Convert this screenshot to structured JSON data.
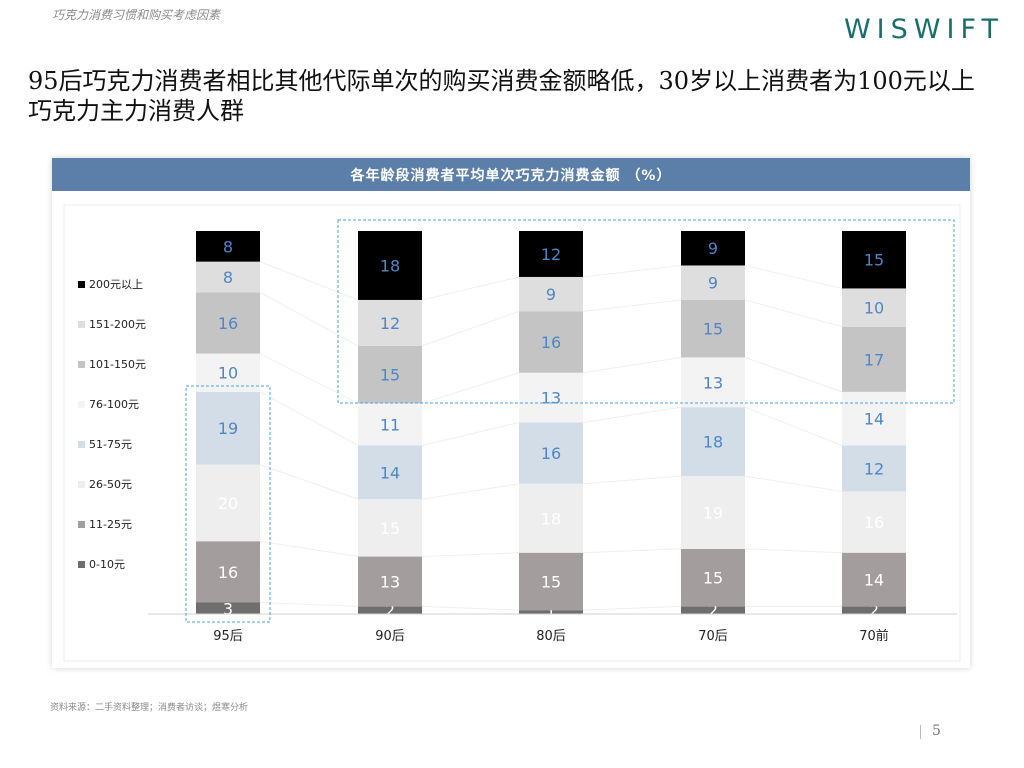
{
  "header": {
    "note": "巧克力消费习惯和购买考虑因素",
    "logo": "WISWIFT"
  },
  "headline": "95后巧克力消费者相比其他代际单次的购买消费金额略低，30岁以上消费者为100元以上巧克力主力消费人群",
  "footer": {
    "source": "资料来源：二手资料整理；消费者访谈；煜寒分析",
    "page_number": "5"
  },
  "chart_data": {
    "type": "bar",
    "stacked": true,
    "title": "各年龄段消费者平均单次巧克力消费金额  （%）",
    "categories": [
      "95后",
      "90后",
      "80后",
      "70后",
      "70前"
    ],
    "legend_position": "left",
    "series": [
      {
        "name": "0-10元",
        "values": [
          3,
          2,
          1,
          2,
          2
        ],
        "color": "#6e6e6e",
        "label_color": "#ffffff"
      },
      {
        "name": "11-25元",
        "values": [
          16,
          13,
          15,
          15,
          14
        ],
        "color": "#a39d9d",
        "label_color": "#ffffff"
      },
      {
        "name": "26-50元",
        "values": [
          20,
          15,
          18,
          19,
          16
        ],
        "color": "#eeeeee",
        "label_color": "#ffffff"
      },
      {
        "name": "51-75元",
        "values": [
          19,
          14,
          16,
          18,
          12
        ],
        "color": "#d3dde8",
        "label_color": "#4f86c6"
      },
      {
        "name": "76-100元",
        "values": [
          10,
          11,
          13,
          13,
          14
        ],
        "color": "#f3f3f3",
        "label_color": "#4f86c6"
      },
      {
        "name": "101-150元",
        "values": [
          16,
          15,
          16,
          15,
          17
        ],
        "color": "#c4c4c4",
        "label_color": "#4f86c6"
      },
      {
        "name": "151-200元",
        "values": [
          8,
          12,
          9,
          9,
          10
        ],
        "color": "#dedede",
        "label_color": "#4f86c6"
      },
      {
        "name": "200元以上",
        "values": [
          8,
          18,
          12,
          9,
          15
        ],
        "color": "#000000",
        "label_color": "#4f86c6"
      }
    ],
    "ylim": [
      0,
      100
    ],
    "grid": false,
    "highlight_color": "#4aa3df"
  }
}
